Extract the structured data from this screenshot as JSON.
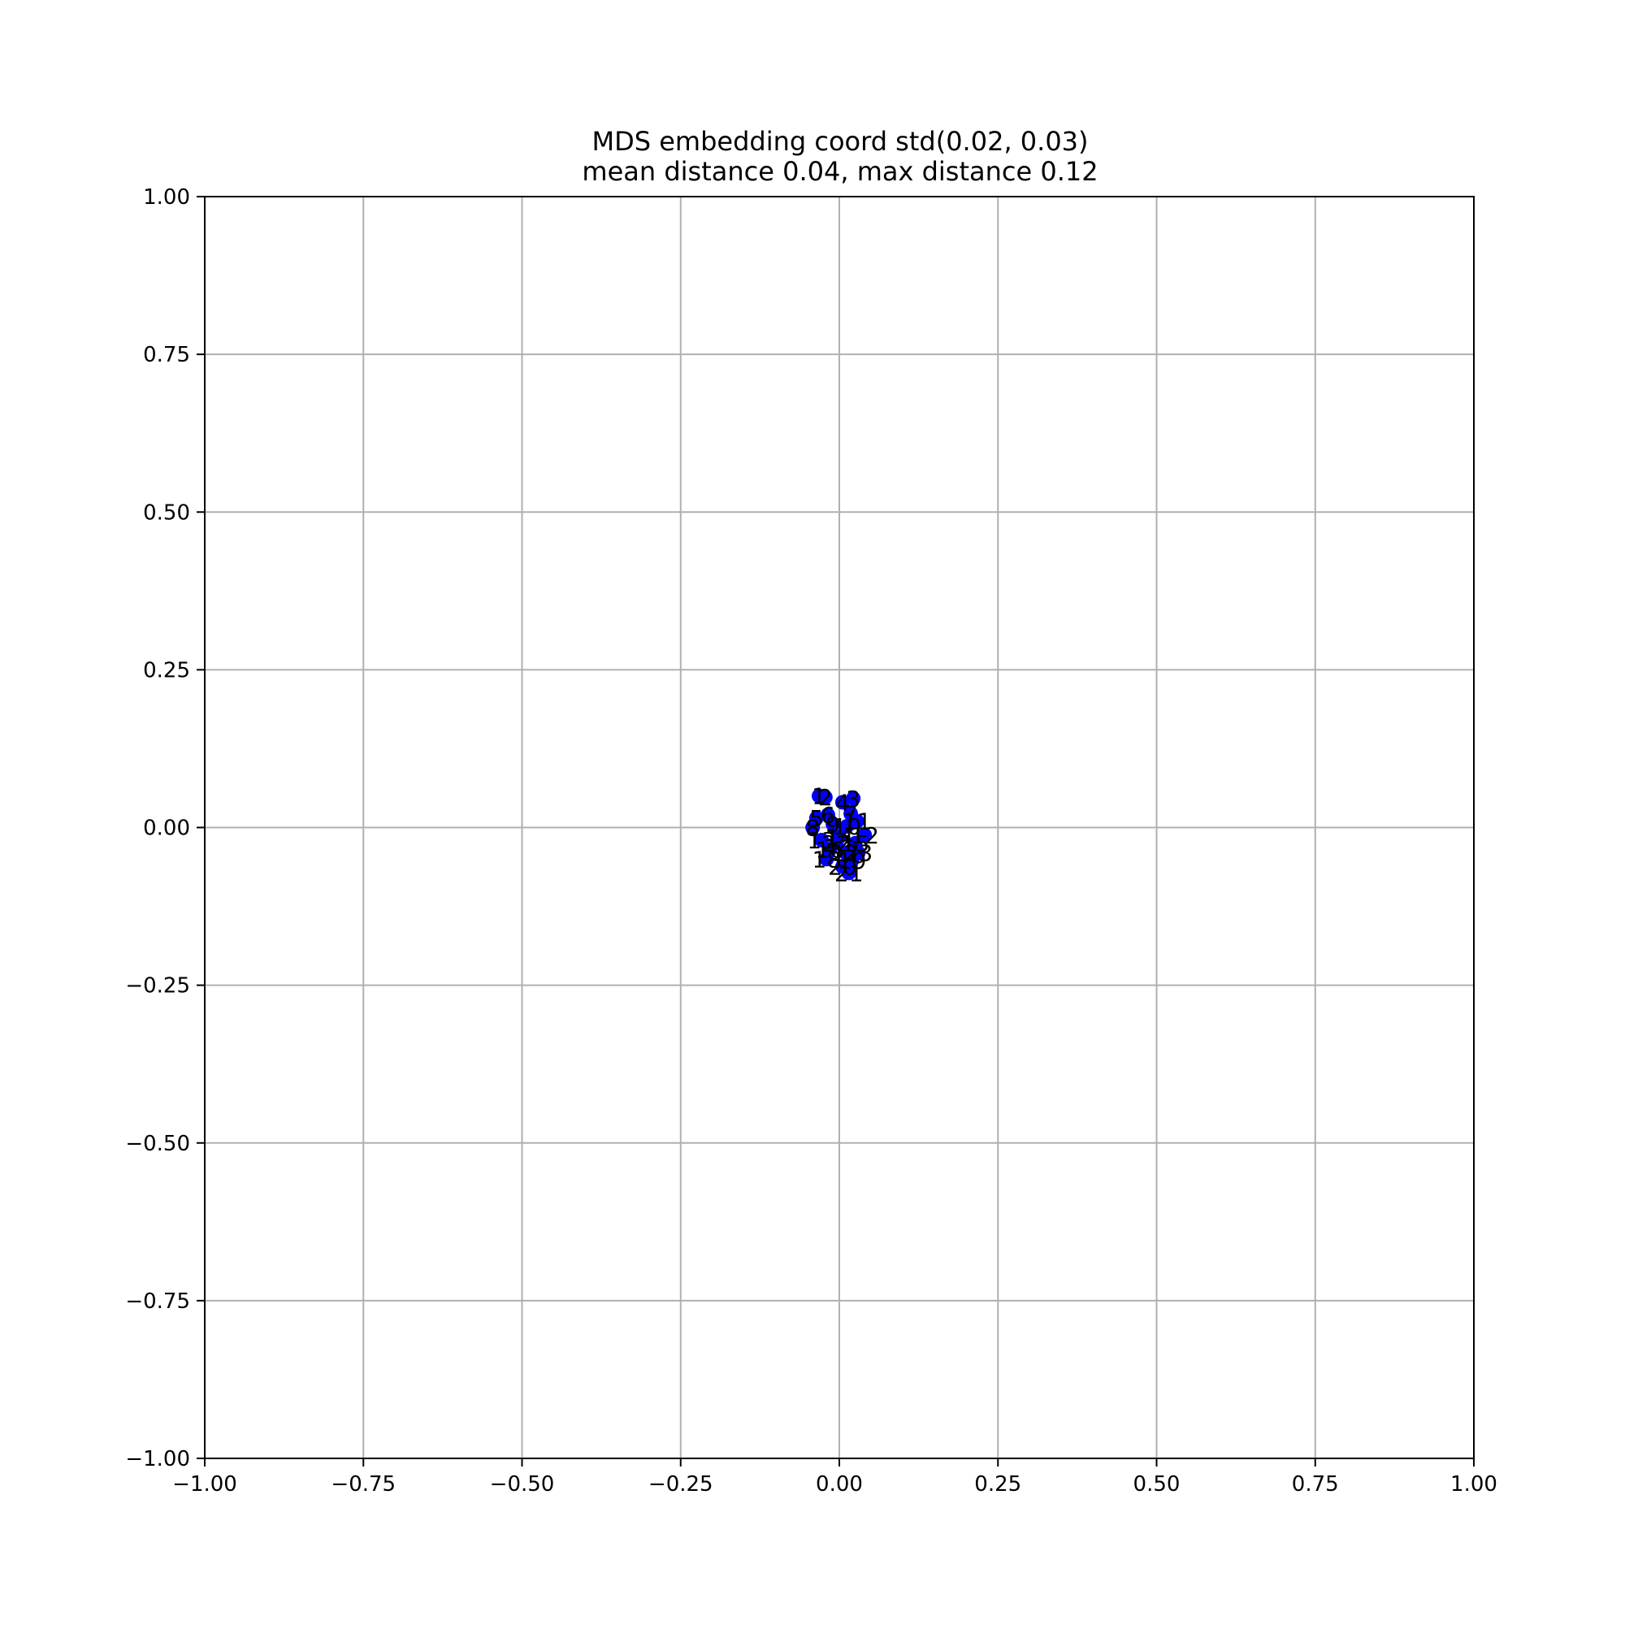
{
  "chart_data": {
    "type": "scatter",
    "title": "MDS embedding coord std(0.02, 0.03)",
    "subtitle": "mean distance 0.04, max distance 0.12",
    "xlabel": "",
    "ylabel": "",
    "xlim": [
      -1.0,
      1.0
    ],
    "ylim": [
      -1.0,
      1.0
    ],
    "grid": true,
    "legend": "none",
    "x_ticks": [
      "−1.00",
      "−0.75",
      "−0.50",
      "−0.25",
      "0.00",
      "0.25",
      "0.50",
      "0.75",
      "1.00"
    ],
    "y_ticks": [
      "1.00",
      "0.75",
      "0.50",
      "0.25",
      "0.00",
      "−0.25",
      "−0.50",
      "−0.75",
      "−1.00"
    ],
    "marker_color": "#0000ff",
    "points": [
      {
        "label": "1",
        "x": -0.032,
        "y": 0.05
      },
      {
        "label": "2",
        "x": -0.022,
        "y": 0.048
      },
      {
        "label": "3",
        "x": 0.022,
        "y": 0.046
      },
      {
        "label": "4",
        "x": 0.005,
        "y": 0.04
      },
      {
        "label": "5",
        "x": -0.036,
        "y": 0.015
      },
      {
        "label": "6",
        "x": -0.018,
        "y": 0.02
      },
      {
        "label": "7",
        "x": 0.018,
        "y": 0.022
      },
      {
        "label": "8",
        "x": -0.042,
        "y": 0.0
      },
      {
        "label": "9",
        "x": -0.01,
        "y": 0.005
      },
      {
        "label": "10",
        "x": 0.012,
        "y": 0.002
      },
      {
        "label": "11",
        "x": 0.028,
        "y": 0.01
      },
      {
        "label": "12",
        "x": 0.04,
        "y": -0.012
      },
      {
        "label": "13",
        "x": -0.028,
        "y": -0.02
      },
      {
        "label": "14",
        "x": 0.0,
        "y": -0.015
      },
      {
        "label": "15",
        "x": 0.025,
        "y": -0.025
      },
      {
        "label": "16",
        "x": -0.015,
        "y": -0.035
      },
      {
        "label": "17",
        "x": 0.01,
        "y": -0.04
      },
      {
        "label": "18",
        "x": -0.02,
        "y": -0.05
      },
      {
        "label": "19",
        "x": 0.02,
        "y": -0.052
      },
      {
        "label": "20",
        "x": 0.005,
        "y": -0.062
      },
      {
        "label": "21",
        "x": 0.015,
        "y": -0.072
      },
      {
        "label": "22",
        "x": -0.005,
        "y": -0.025
      },
      {
        "label": "23",
        "x": 0.03,
        "y": -0.04
      }
    ]
  }
}
